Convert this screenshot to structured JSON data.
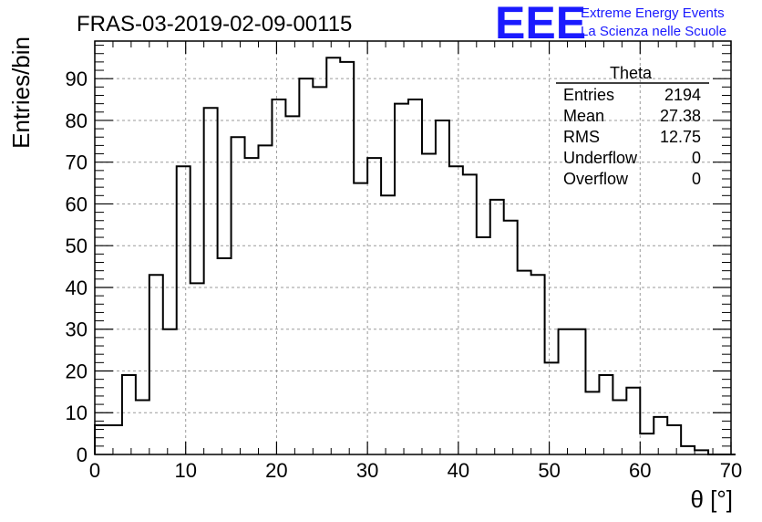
{
  "title": "FRAS-03-2019-02-09-00115",
  "logo": {
    "mark": "EEE",
    "line1": "Extreme Energy Events",
    "line2": "La Scienza nelle Scuole",
    "color": "#1a1aff"
  },
  "stats": {
    "name": "Theta",
    "rows": [
      {
        "label": "Entries",
        "value": "2194"
      },
      {
        "label": "Mean",
        "value": "27.38"
      },
      {
        "label": "RMS",
        "value": "12.75"
      },
      {
        "label": "Underflow",
        "value": "0"
      },
      {
        "label": "Overflow",
        "value": "0"
      }
    ]
  },
  "chart_data": {
    "type": "bar",
    "style": "step-histogram",
    "title": "FRAS-03-2019-02-09-00115",
    "xlabel": "θ [°]",
    "ylabel": "Entries/bin",
    "xlim": [
      0,
      70
    ],
    "ylim": [
      0,
      99
    ],
    "xticks": [
      0,
      10,
      20,
      30,
      40,
      50,
      60,
      70
    ],
    "yticks": [
      0,
      10,
      20,
      30,
      40,
      50,
      60,
      70,
      80,
      90
    ],
    "grid": true,
    "line_color": "#000000",
    "bin_width": 1.5,
    "bin_start": 0,
    "values": [
      7,
      7,
      19,
      13,
      43,
      30,
      69,
      41,
      83,
      47,
      76,
      71,
      74,
      85,
      81,
      90,
      88,
      95,
      94,
      65,
      71,
      62,
      84,
      85,
      72,
      80,
      69,
      67,
      52,
      61,
      56,
      44,
      43,
      22,
      30,
      30,
      15,
      19,
      13,
      16,
      5,
      9,
      7,
      2,
      1,
      0,
      0
    ]
  }
}
